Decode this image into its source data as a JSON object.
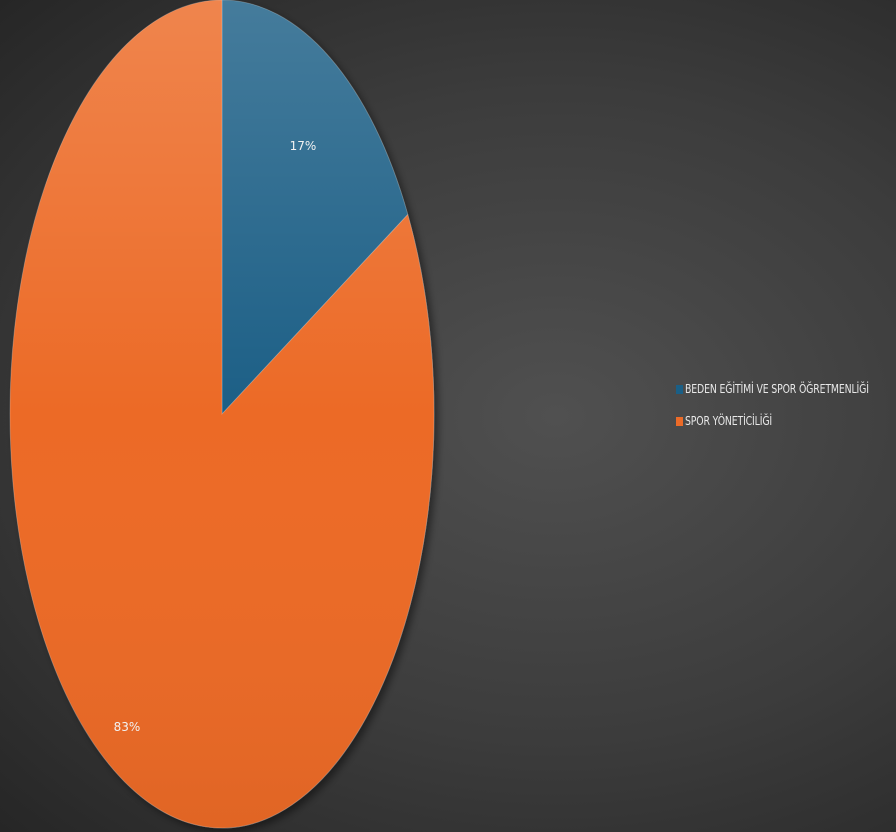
{
  "chart_data": {
    "type": "pie",
    "categories": [
      "BEDEN EĞİTİMİ VE SPOR ÖĞRETMENLİĞİ",
      "SPOR YÖNETİCİLİĞİ"
    ],
    "values": [
      17,
      83
    ],
    "data_labels": [
      "17%",
      "83%"
    ],
    "colors": [
      "#1a5f86",
      "#ec6b28"
    ],
    "start_angle_deg": 0,
    "direction": "clockwise",
    "legend_placement": "right",
    "title": ""
  }
}
